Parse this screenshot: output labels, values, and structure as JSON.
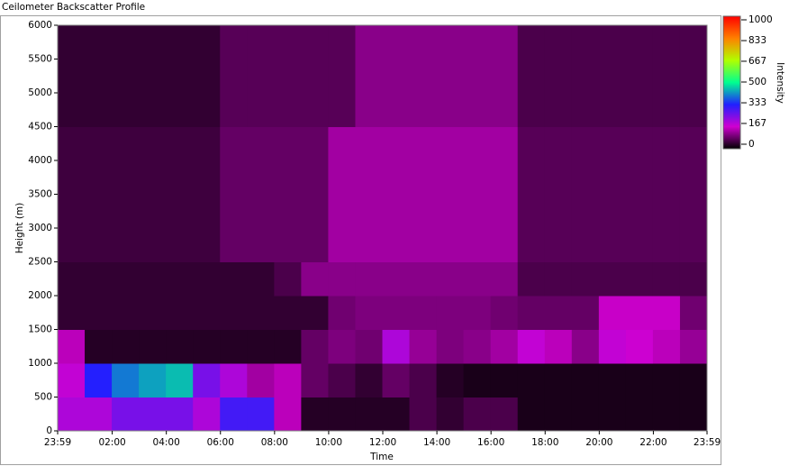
{
  "chart_data": {
    "type": "heatmap",
    "title": "Ceilometer Backscatter Profile",
    "xlabel": "Time",
    "ylabel": "Height (m)",
    "colorbar_label": "Intensity",
    "xlim": [
      0,
      1440
    ],
    "xticks": [
      {
        "value": 0,
        "label": "23:59"
      },
      {
        "value": 121,
        "label": "02:00"
      },
      {
        "value": 241,
        "label": "04:00"
      },
      {
        "value": 361,
        "label": "06:00"
      },
      {
        "value": 481,
        "label": "08:00"
      },
      {
        "value": 601,
        "label": "10:00"
      },
      {
        "value": 721,
        "label": "12:00"
      },
      {
        "value": 841,
        "label": "14:00"
      },
      {
        "value": 961,
        "label": "16:00"
      },
      {
        "value": 1081,
        "label": "18:00"
      },
      {
        "value": 1201,
        "label": "20:00"
      },
      {
        "value": 1321,
        "label": "22:00"
      },
      {
        "value": 1440,
        "label": "23:59"
      }
    ],
    "ylim": [
      0,
      6000
    ],
    "yticks": [
      0,
      500,
      1000,
      1500,
      2000,
      2500,
      3000,
      3500,
      4000,
      4500,
      5000,
      5500,
      6000
    ],
    "zlim": [
      0,
      1000
    ],
    "zticks": [
      0,
      167,
      333,
      500,
      667,
      833,
      1000
    ],
    "colorscale": [
      "#000000",
      "#d000d0",
      "#2020ff",
      "#00ff90",
      "#b0ff00",
      "#ff8000",
      "#ff0000"
    ],
    "z": [
      [
        200,
        200,
        250,
        250,
        250,
        200,
        300,
        300,
        150,
        30,
        30,
        30,
        30,
        60,
        40,
        60,
        60,
        20,
        20,
        20,
        20,
        20,
        20,
        20
      ],
      [
        180,
        330,
        400,
        430,
        450,
        250,
        200,
        130,
        150,
        80,
        60,
        40,
        80,
        60,
        30,
        20,
        20,
        20,
        20,
        20,
        20,
        20,
        20,
        20
      ],
      [
        150,
        30,
        30,
        30,
        30,
        30,
        30,
        30,
        30,
        80,
        100,
        90,
        200,
        120,
        100,
        110,
        130,
        180,
        150,
        110,
        180,
        170,
        150,
        120
      ],
      [
        40,
        40,
        40,
        40,
        40,
        40,
        40,
        40,
        40,
        40,
        90,
        100,
        100,
        100,
        100,
        100,
        90,
        80,
        80,
        80,
        160,
        160,
        160,
        90
      ],
      [
        40,
        40,
        40,
        40,
        40,
        40,
        40,
        40,
        60,
        110,
        110,
        110,
        110,
        110,
        110,
        110,
        110,
        60,
        60,
        60,
        60,
        60,
        60,
        60
      ],
      [
        50,
        50,
        50,
        50,
        50,
        50,
        80,
        80,
        80,
        80,
        130,
        130,
        130,
        130,
        130,
        130,
        130,
        70,
        70,
        70,
        70,
        70,
        70,
        70
      ],
      [
        50,
        50,
        50,
        50,
        50,
        50,
        80,
        80,
        80,
        80,
        130,
        130,
        130,
        130,
        130,
        130,
        130,
        70,
        70,
        70,
        70,
        70,
        70,
        70
      ],
      [
        50,
        50,
        50,
        50,
        50,
        50,
        80,
        80,
        80,
        80,
        130,
        130,
        130,
        130,
        130,
        130,
        130,
        70,
        70,
        70,
        70,
        70,
        70,
        70
      ],
      [
        50,
        50,
        50,
        50,
        50,
        50,
        80,
        80,
        80,
        80,
        130,
        130,
        130,
        130,
        130,
        130,
        130,
        70,
        70,
        70,
        70,
        70,
        70,
        70
      ],
      [
        40,
        40,
        40,
        40,
        40,
        40,
        70,
        70,
        70,
        70,
        70,
        110,
        110,
        110,
        110,
        110,
        110,
        60,
        60,
        60,
        60,
        60,
        60,
        60
      ],
      [
        40,
        40,
        40,
        40,
        40,
        40,
        70,
        70,
        70,
        70,
        70,
        110,
        110,
        110,
        110,
        110,
        110,
        60,
        60,
        60,
        60,
        60,
        60,
        60
      ],
      [
        40,
        40,
        40,
        40,
        40,
        40,
        70,
        70,
        70,
        70,
        70,
        110,
        110,
        110,
        110,
        110,
        110,
        60,
        60,
        60,
        60,
        60,
        60,
        60
      ]
    ]
  }
}
